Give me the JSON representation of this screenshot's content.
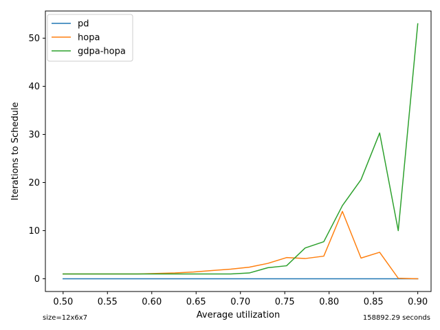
{
  "chart_data": {
    "type": "line",
    "xlabel": "Average utilization",
    "ylabel": "Iterations to Schedule",
    "xlim": [
      0.48,
      0.915
    ],
    "ylim": [
      -2.65,
      55.65
    ],
    "xticks": [
      0.5,
      0.55,
      0.6,
      0.65,
      0.7,
      0.75,
      0.8,
      0.85,
      0.9
    ],
    "xtick_labels": [
      "0.50",
      "0.55",
      "0.60",
      "0.65",
      "0.70",
      "0.75",
      "0.80",
      "0.85",
      "0.90"
    ],
    "yticks": [
      0,
      10,
      20,
      30,
      40,
      50
    ],
    "ytick_labels": [
      "0",
      "10",
      "20",
      "30",
      "40",
      "50"
    ],
    "grid": false,
    "legend_position": "top-left",
    "series": [
      {
        "name": "pd",
        "color": "#1f77b4",
        "x": [
          0.5,
          0.521,
          0.542,
          0.563,
          0.584,
          0.605,
          0.626,
          0.647,
          0.668,
          0.689,
          0.71,
          0.731,
          0.752,
          0.773,
          0.794,
          0.815,
          0.836,
          0.857,
          0.878,
          0.9
        ],
        "y": [
          0,
          0,
          0,
          0,
          0,
          0,
          0,
          0,
          0,
          0,
          0,
          0,
          0,
          0,
          0,
          0,
          0,
          0,
          0,
          0
        ]
      },
      {
        "name": "hopa",
        "color": "#ff7f0e",
        "x": [
          0.5,
          0.521,
          0.542,
          0.563,
          0.584,
          0.605,
          0.626,
          0.647,
          0.668,
          0.689,
          0.71,
          0.731,
          0.752,
          0.773,
          0.794,
          0.815,
          0.836,
          0.857,
          0.878,
          0.9
        ],
        "y": [
          1.0,
          1.0,
          1.0,
          1.0,
          1.0,
          1.1,
          1.2,
          1.4,
          1.7,
          2.0,
          2.4,
          3.2,
          4.4,
          4.2,
          4.7,
          14.0,
          4.3,
          5.5,
          0.1,
          0.0
        ]
      },
      {
        "name": "gdpa-hopa",
        "color": "#2ca02c",
        "x": [
          0.5,
          0.521,
          0.542,
          0.563,
          0.584,
          0.605,
          0.626,
          0.647,
          0.668,
          0.689,
          0.71,
          0.731,
          0.752,
          0.773,
          0.794,
          0.815,
          0.836,
          0.857,
          0.878,
          0.9
        ],
        "y": [
          1.0,
          1.0,
          1.0,
          1.0,
          1.0,
          1.0,
          1.0,
          1.0,
          1.0,
          1.0,
          1.2,
          2.3,
          2.7,
          6.4,
          7.7,
          15.2,
          20.6,
          30.3,
          10.0,
          53.0
        ]
      }
    ],
    "footnote_left": "size=12x6x7",
    "footnote_right": "158892.29 seconds"
  }
}
